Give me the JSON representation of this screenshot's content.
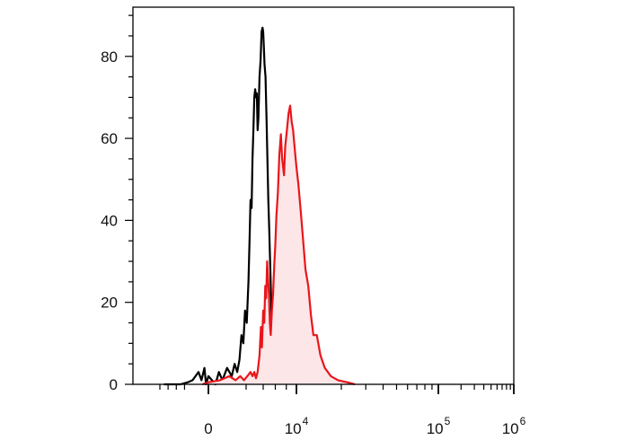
{
  "chart_data": {
    "type": "area",
    "title": "",
    "xlabel": "",
    "ylabel": "",
    "x_scale": "biexponential",
    "ylim": [
      0,
      92
    ],
    "y_ticks": [
      0,
      20,
      40,
      60,
      80
    ],
    "y_tick_labels": [
      "0",
      "20",
      "40",
      "60",
      "80"
    ],
    "x_tick_labels": [
      {
        "value": 0,
        "base": "0",
        "exp": ""
      },
      {
        "value": 10000,
        "base": "10",
        "exp": "4"
      },
      {
        "value": 100000,
        "base": "10",
        "exp": "5"
      },
      {
        "value": 1000000,
        "base": "10",
        "exp": "6"
      }
    ],
    "grid": false,
    "legend": "none",
    "series": [
      {
        "color": "#000000",
        "fill": "none",
        "points": [
          [
            -7000,
            0
          ],
          [
            -3000,
            0
          ],
          [
            -1200,
            0.5
          ],
          [
            -800,
            1
          ],
          [
            -500,
            3
          ],
          [
            -350,
            1
          ],
          [
            -200,
            4
          ],
          [
            -120,
            0
          ],
          [
            0,
            2
          ],
          [
            150,
            1
          ],
          [
            300,
            0
          ],
          [
            450,
            3
          ],
          [
            600,
            1
          ],
          [
            800,
            4
          ],
          [
            1000,
            2
          ],
          [
            1150,
            5
          ],
          [
            1300,
            3
          ],
          [
            1450,
            6
          ],
          [
            1600,
            12
          ],
          [
            1750,
            10
          ],
          [
            1900,
            18
          ],
          [
            2050,
            15
          ],
          [
            2200,
            25
          ],
          [
            2300,
            35
          ],
          [
            2400,
            45
          ],
          [
            2500,
            43
          ],
          [
            2600,
            55
          ],
          [
            2700,
            62
          ],
          [
            2800,
            70
          ],
          [
            2900,
            72
          ],
          [
            3000,
            70
          ],
          [
            3100,
            71
          ],
          [
            3200,
            62
          ],
          [
            3300,
            65
          ],
          [
            3450,
            75
          ],
          [
            3600,
            79
          ],
          [
            3750,
            86
          ],
          [
            3900,
            87
          ],
          [
            4000,
            86
          ],
          [
            4100,
            82
          ],
          [
            4200,
            78
          ],
          [
            4350,
            75
          ],
          [
            4500,
            65
          ],
          [
            4650,
            55
          ],
          [
            4800,
            45
          ],
          [
            4950,
            38
          ],
          [
            5100,
            30
          ],
          [
            5250,
            22
          ],
          [
            5400,
            13
          ],
          [
            5600,
            8
          ],
          [
            5800,
            4
          ],
          [
            6000,
            2
          ],
          [
            6200,
            3
          ],
          [
            6400,
            1
          ],
          [
            6600,
            0.5
          ],
          [
            7000,
            0
          ]
        ]
      },
      {
        "color": "#e8161b",
        "fill": "#fce6e8",
        "points": [
          [
            -300,
            0
          ],
          [
            0,
            0.5
          ],
          [
            500,
            1
          ],
          [
            900,
            2
          ],
          [
            1200,
            1
          ],
          [
            1500,
            2
          ],
          [
            1800,
            1
          ],
          [
            2100,
            2
          ],
          [
            2400,
            3
          ],
          [
            2600,
            2
          ],
          [
            2800,
            3
          ],
          [
            3000,
            1.5
          ],
          [
            3200,
            3
          ],
          [
            3450,
            7
          ],
          [
            3650,
            14
          ],
          [
            3800,
            9
          ],
          [
            4000,
            18
          ],
          [
            4150,
            15
          ],
          [
            4300,
            24
          ],
          [
            4450,
            21
          ],
          [
            4600,
            30
          ],
          [
            4750,
            26
          ],
          [
            4900,
            22
          ],
          [
            5050,
            15
          ],
          [
            5200,
            12
          ],
          [
            5400,
            18
          ],
          [
            5600,
            22
          ],
          [
            5800,
            29
          ],
          [
            6000,
            34
          ],
          [
            6200,
            41
          ],
          [
            6500,
            47
          ],
          [
            6800,
            56
          ],
          [
            7100,
            61
          ],
          [
            7300,
            55
          ],
          [
            7600,
            51
          ],
          [
            7800,
            58
          ],
          [
            8100,
            62
          ],
          [
            8400,
            66
          ],
          [
            8700,
            68
          ],
          [
            9000,
            64
          ],
          [
            9300,
            62
          ],
          [
            9600,
            58
          ],
          [
            10000,
            53
          ],
          [
            10300,
            49
          ],
          [
            10700,
            42
          ],
          [
            11100,
            35
          ],
          [
            11500,
            28
          ],
          [
            12000,
            24
          ],
          [
            12500,
            17
          ],
          [
            13000,
            12
          ],
          [
            13700,
            12
          ],
          [
            14500,
            7
          ],
          [
            15500,
            4
          ],
          [
            17000,
            2
          ],
          [
            19000,
            1
          ],
          [
            22000,
            0.5
          ],
          [
            25000,
            0
          ]
        ]
      }
    ]
  }
}
